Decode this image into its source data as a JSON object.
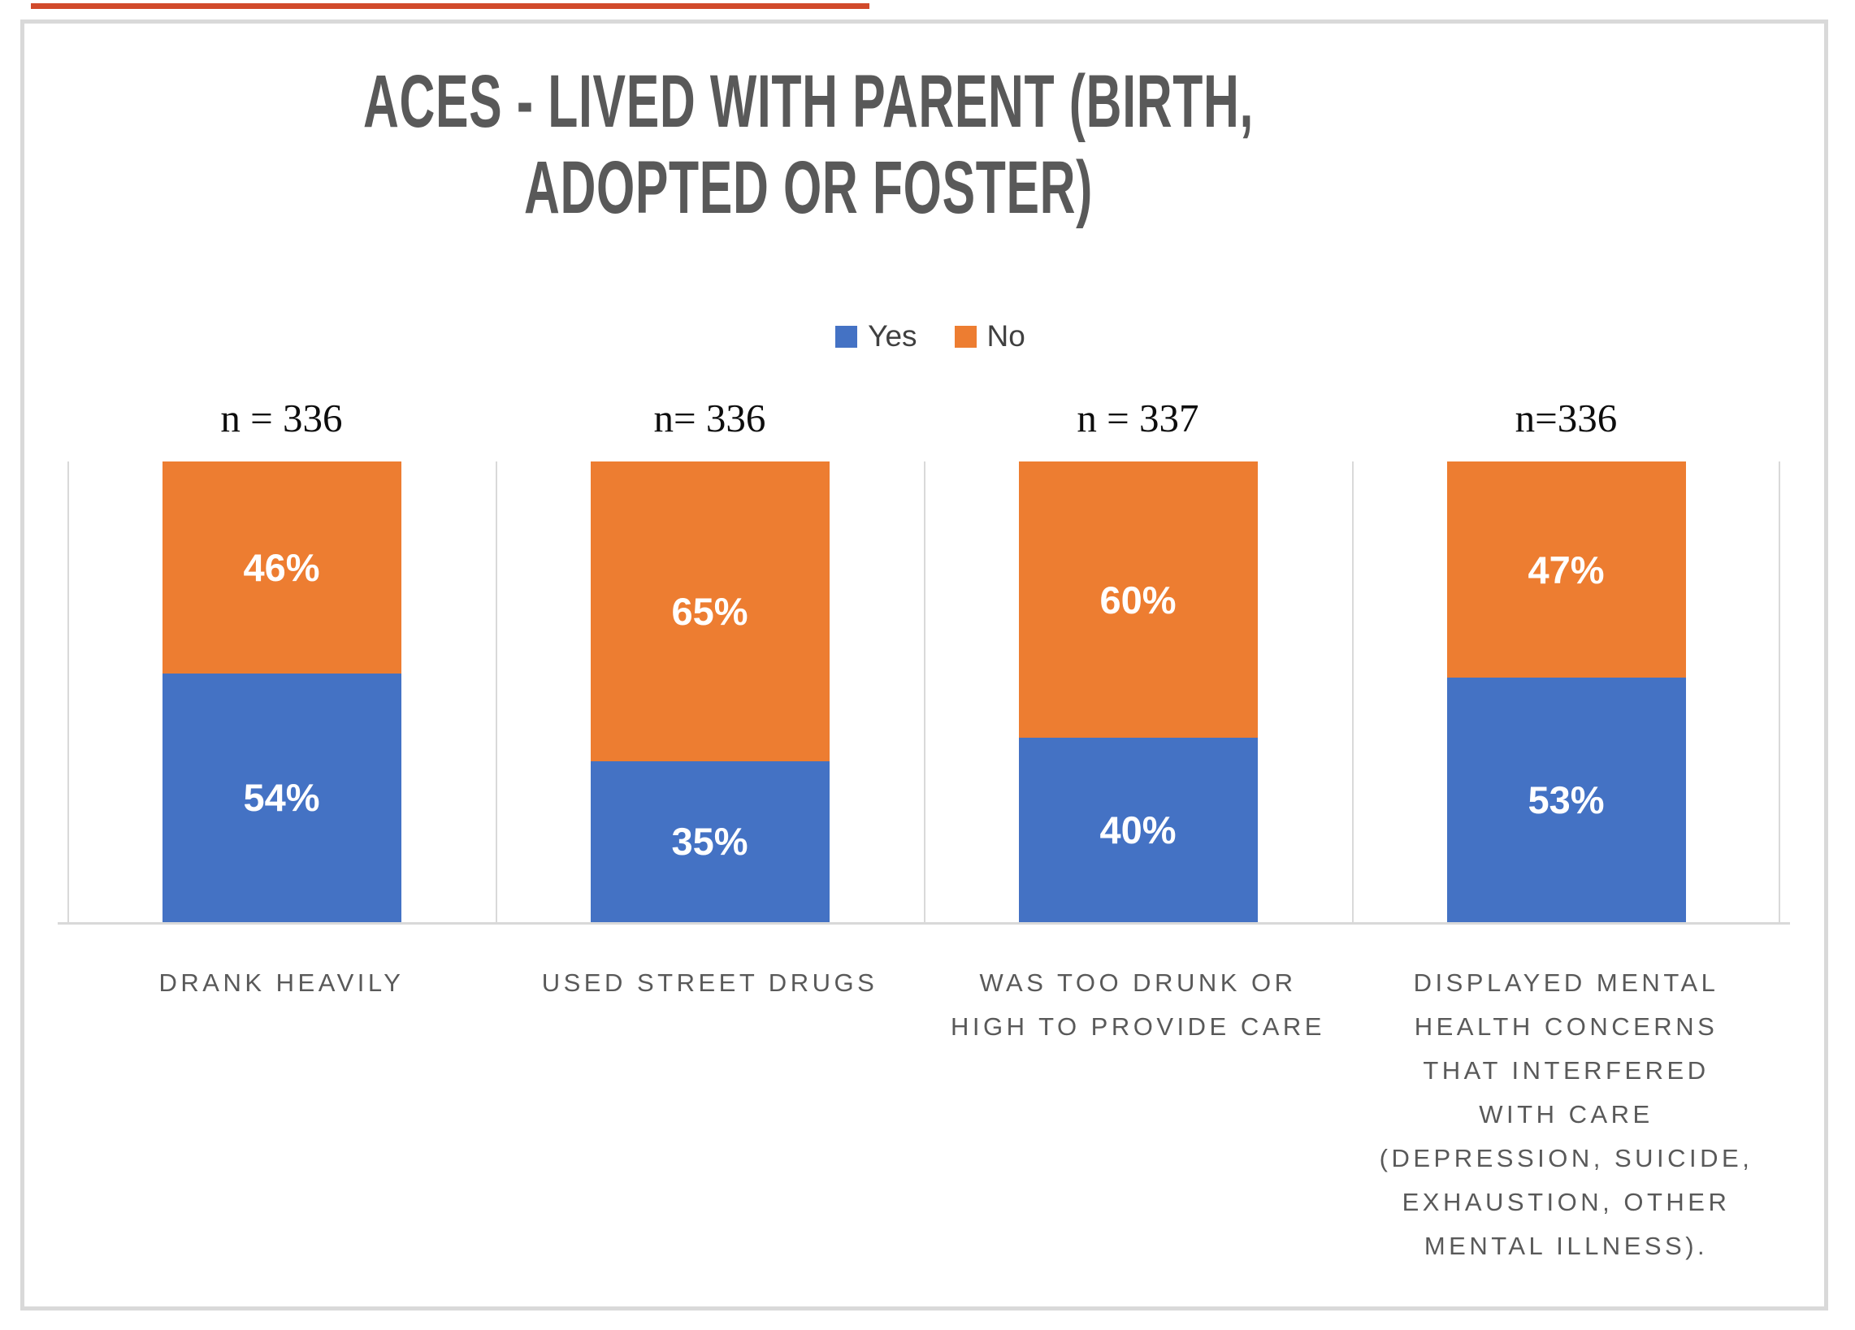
{
  "page": {
    "background": "#FFFFFF",
    "frame_border_color": "#D9D9D9",
    "artifact_line_color": "#D14A2B"
  },
  "colors": {
    "yes": "#4472C4",
    "no": "#ED7D31",
    "title_text": "#595959",
    "legend_text": "#404040",
    "category_text": "#595959",
    "n_label_text": "#0D0D0D",
    "gridline": "#D9D9D9",
    "data_label_text": "#FFFFFF"
  },
  "chart_data": {
    "type": "bar",
    "stacked": true,
    "orientation": "vertical",
    "title": "ACES - LIVED WITH PARENT (BIRTH, ADOPTED OR FOSTER)",
    "title_lines": [
      "ACES - LIVED WITH PARENT (BIRTH,",
      "ADOPTED OR FOSTER)"
    ],
    "legend": {
      "position": "top",
      "entries": [
        "Yes",
        "No"
      ]
    },
    "n_labels": [
      "n = 336",
      "n= 336",
      "n = 337",
      "n=336"
    ],
    "categories": [
      "DRANK HEAVILY",
      "USED STREET DRUGS",
      "WAS TOO DRUNK OR HIGH TO PROVIDE CARE",
      "DISPLAYED MENTAL HEALTH CONCERNS THAT INTERFERED WITH CARE (DEPRESSION, SUICIDE, EXHAUSTION, OTHER MENTAL ILLNESS)."
    ],
    "category_lines": [
      [
        "DRANK HEAVILY"
      ],
      [
        "USED STREET DRUGS"
      ],
      [
        "WAS TOO DRUNK OR",
        "HIGH TO PROVIDE CARE"
      ],
      [
        "DISPLAYED MENTAL",
        "HEALTH CONCERNS",
        "THAT INTERFERED",
        "WITH CARE",
        "(DEPRESSION, SUICIDE,",
        "EXHAUSTION, OTHER",
        "MENTAL ILLNESS)."
      ]
    ],
    "series": [
      {
        "name": "Yes",
        "color": "#4472C4",
        "position": "bottom",
        "values": [
          54,
          35,
          40,
          53
        ]
      },
      {
        "name": "No",
        "color": "#ED7D31",
        "position": "top",
        "values": [
          46,
          65,
          60,
          47
        ]
      }
    ],
    "data_labels": {
      "yes": [
        "54%",
        "35%",
        "40%",
        "53%"
      ],
      "no": [
        "46%",
        "65%",
        "60%",
        "47%"
      ]
    },
    "value_format": "percent",
    "ylim": [
      0,
      100
    ],
    "y_axis_visible": false,
    "category_separators": true
  }
}
